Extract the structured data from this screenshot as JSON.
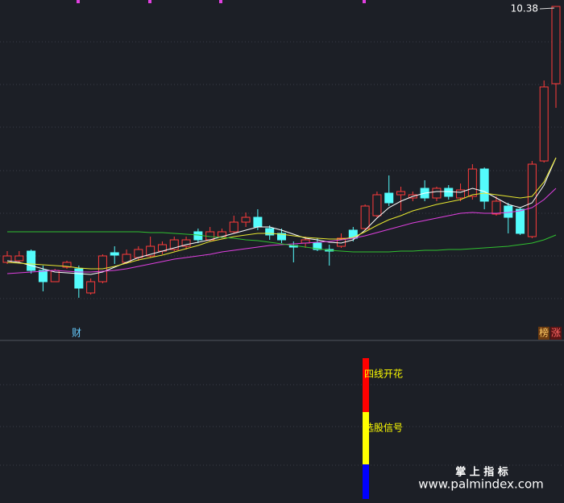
{
  "chart_data": {
    "type": "candlestick",
    "max_label": 10.38,
    "up_color": "#ff3b3b",
    "down_color": "#54fcfc",
    "ylim": [
      6.6,
      10.46
    ],
    "open": [
      7.2,
      7.22,
      7.34,
      7.1,
      6.96,
      7.14,
      7.12,
      6.82,
      6.96,
      7.32,
      7.2,
      7.26,
      7.28,
      7.34,
      7.36,
      7.4,
      7.58,
      7.48,
      7.52,
      7.58,
      7.7,
      7.76,
      7.62,
      7.56,
      7.41,
      7.44,
      7.44,
      7.36,
      7.4,
      7.6,
      7.62,
      7.78,
      8.06,
      8.04,
      8.0,
      8.12,
      8.0,
      8.12,
      8.0,
      8.02,
      8.36,
      7.8,
      7.9,
      7.86,
      7.52,
      8.46,
      9.42
    ],
    "high": [
      7.34,
      7.34,
      7.36,
      7.16,
      7.12,
      7.22,
      7.16,
      7.0,
      7.3,
      7.4,
      7.36,
      7.4,
      7.52,
      7.46,
      7.52,
      7.52,
      7.62,
      7.64,
      7.62,
      7.78,
      7.82,
      7.86,
      7.66,
      7.62,
      7.46,
      7.52,
      7.5,
      7.42,
      7.56,
      7.64,
      7.92,
      8.08,
      8.28,
      8.14,
      8.08,
      8.22,
      8.14,
      8.16,
      8.18,
      8.42,
      8.38,
      8.02,
      7.94,
      7.88,
      8.46,
      9.46,
      10.38
    ],
    "low": [
      7.18,
      7.2,
      7.06,
      6.84,
      6.96,
      7.12,
      6.76,
      6.8,
      6.94,
      7.18,
      7.18,
      7.22,
      7.26,
      7.3,
      7.34,
      7.36,
      7.44,
      7.46,
      7.5,
      7.56,
      7.64,
      7.6,
      7.48,
      7.44,
      7.2,
      7.38,
      7.34,
      7.16,
      7.38,
      7.46,
      7.6,
      7.76,
      7.9,
      7.84,
      7.96,
      7.96,
      7.96,
      7.98,
      7.96,
      7.98,
      7.86,
      7.78,
      7.56,
      7.54,
      7.5,
      8.44,
      9.12
    ],
    "close": [
      7.28,
      7.28,
      7.1,
      6.96,
      7.1,
      7.2,
      6.88,
      6.96,
      7.28,
      7.29,
      7.3,
      7.36,
      7.4,
      7.42,
      7.48,
      7.48,
      7.48,
      7.58,
      7.58,
      7.7,
      7.76,
      7.64,
      7.54,
      7.48,
      7.39,
      7.48,
      7.36,
      7.34,
      7.5,
      7.5,
      7.9,
      8.04,
      7.94,
      8.08,
      8.04,
      8.0,
      8.12,
      8.02,
      8.1,
      8.36,
      7.96,
      7.96,
      7.76,
      7.56,
      8.42,
      9.38,
      10.38
    ],
    "series": [
      {
        "color": "#ffffff",
        "values": [
          7.22,
          7.2,
          7.16,
          7.12,
          7.08,
          7.07,
          7.06,
          7.05,
          7.08,
          7.14,
          7.2,
          7.26,
          7.3,
          7.34,
          7.38,
          7.42,
          7.45,
          7.48,
          7.52,
          7.56,
          7.6,
          7.64,
          7.64,
          7.6,
          7.55,
          7.5,
          7.48,
          7.45,
          7.44,
          7.48,
          7.6,
          7.75,
          7.88,
          7.96,
          8.02,
          8.06,
          8.08,
          8.08,
          8.07,
          8.12,
          8.08,
          8.0,
          7.92,
          7.88,
          7.94,
          8.16,
          8.5
        ]
      },
      {
        "color": "#e8e830",
        "values": [
          7.2,
          7.19,
          7.18,
          7.17,
          7.16,
          7.15,
          7.13,
          7.12,
          7.12,
          7.15,
          7.19,
          7.23,
          7.26,
          7.29,
          7.33,
          7.37,
          7.41,
          7.46,
          7.49,
          7.52,
          7.54,
          7.56,
          7.56,
          7.55,
          7.53,
          7.51,
          7.5,
          7.49,
          7.49,
          7.51,
          7.58,
          7.66,
          7.73,
          7.78,
          7.84,
          7.88,
          7.92,
          7.95,
          7.98,
          8.04,
          8.06,
          8.04,
          8.02,
          8.0,
          8.02,
          8.2,
          8.5
        ]
      },
      {
        "color": "#e040e0",
        "values": [
          7.06,
          7.07,
          7.08,
          7.09,
          7.1,
          7.09,
          7.08,
          7.08,
          7.09,
          7.1,
          7.12,
          7.15,
          7.18,
          7.21,
          7.24,
          7.26,
          7.28,
          7.3,
          7.33,
          7.35,
          7.37,
          7.39,
          7.41,
          7.42,
          7.43,
          7.44,
          7.45,
          7.46,
          7.48,
          7.5,
          7.53,
          7.57,
          7.61,
          7.65,
          7.69,
          7.72,
          7.75,
          7.78,
          7.81,
          7.82,
          7.81,
          7.81,
          7.82,
          7.84,
          7.88,
          7.98,
          8.12
        ]
      },
      {
        "color": "#30c030",
        "values": [
          7.58,
          7.58,
          7.58,
          7.58,
          7.58,
          7.58,
          7.58,
          7.58,
          7.58,
          7.58,
          7.58,
          7.58,
          7.57,
          7.57,
          7.56,
          7.55,
          7.54,
          7.52,
          7.51,
          7.5,
          7.48,
          7.47,
          7.45,
          7.43,
          7.41,
          7.39,
          7.37,
          7.35,
          7.34,
          7.33,
          7.33,
          7.33,
          7.33,
          7.34,
          7.34,
          7.35,
          7.35,
          7.36,
          7.36,
          7.37,
          7.38,
          7.39,
          7.4,
          7.42,
          7.44,
          7.48,
          7.54
        ]
      }
    ]
  },
  "indicator": {
    "ylim": [
      0,
      195
    ],
    "segments": [
      {
        "value": 43,
        "color": "#0000ff"
      },
      {
        "value": 65,
        "color": "#ffff00",
        "label": "选股信号"
      },
      {
        "value": 67,
        "color": "#ff0000",
        "label": "四线开花"
      }
    ]
  },
  "badges": {
    "left": "财",
    "right": [
      "榜",
      "涨"
    ]
  },
  "watermark": {
    "title": "掌 上 指 标",
    "url": "www.palmindex.com"
  }
}
